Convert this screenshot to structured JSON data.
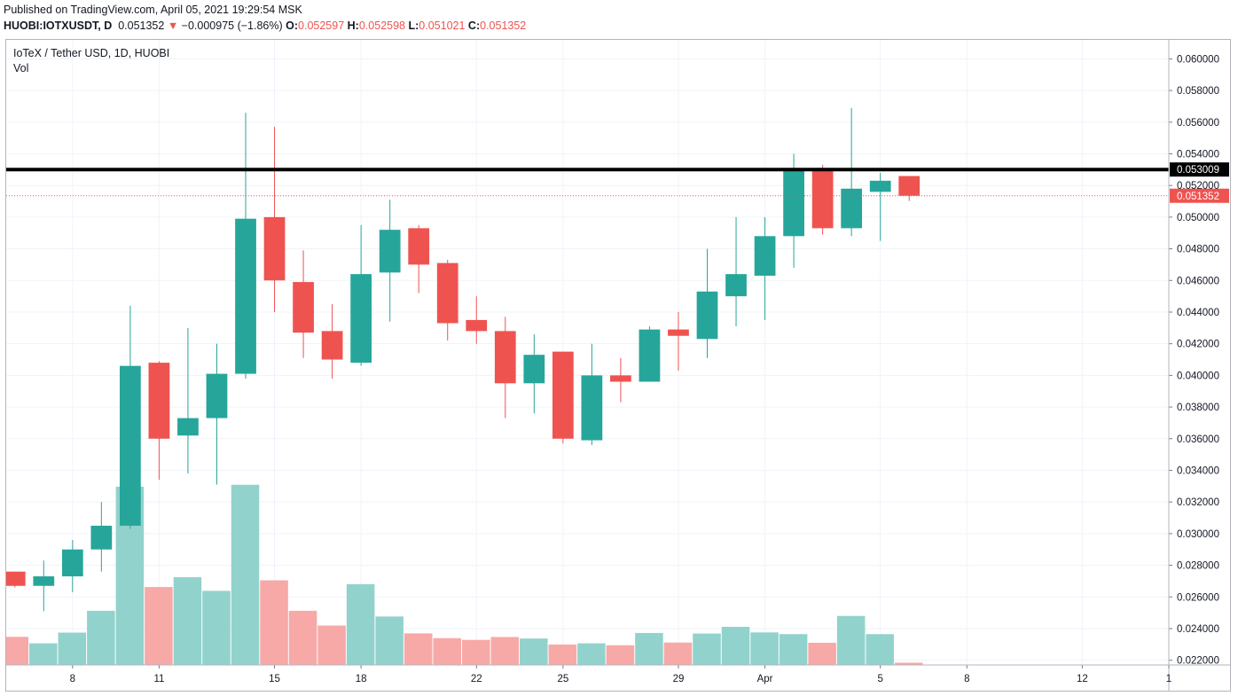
{
  "header": {
    "published": "Published on TradingView.com, April 05, 2021 19:29:54 MSK",
    "symbol": "HUOBI:IOTXUSDT, D",
    "last": "0.051352",
    "change": "−0.000975 (−1.86%)",
    "o_label": "O:",
    "o_value": "0.052597",
    "h_label": "H:",
    "h_value": "0.052598",
    "l_label": "L:",
    "l_value": "0.051021",
    "c_label": "C:",
    "c_value": "0.051352"
  },
  "legend": {
    "title": "IoTeX / Tether USD, 1D, HUOBI",
    "vol": "Vol"
  },
  "colors": {
    "up": "#26a69a",
    "down": "#ef5350",
    "vol_up": "#92d2cc",
    "vol_down": "#f7a9a7",
    "grid": "#f0f3fa",
    "hline": "#000000"
  },
  "chart_data": {
    "type": "candlestick",
    "y_ticks": [
      "0.060000",
      "0.058000",
      "0.056000",
      "0.054000",
      "0.052000",
      "0.050000",
      "0.048000",
      "0.046000",
      "0.044000",
      "0.042000",
      "0.040000",
      "0.038000",
      "0.036000",
      "0.034000",
      "0.032000",
      "0.030000",
      "0.028000",
      "0.026000",
      "0.024000",
      "0.022000"
    ],
    "ylim": [
      0.0217,
      0.0612
    ],
    "x_ticks": [
      {
        "label": "8",
        "day": 2
      },
      {
        "label": "11",
        "day": 5
      },
      {
        "label": "15",
        "day": 9
      },
      {
        "label": "18",
        "day": 12
      },
      {
        "label": "22",
        "day": 16
      },
      {
        "label": "25",
        "day": 19
      },
      {
        "label": "29",
        "day": 23
      },
      {
        "label": "Apr",
        "day": 26
      },
      {
        "label": "5",
        "day": 30
      },
      {
        "label": "8",
        "day": 33
      },
      {
        "label": "12",
        "day": 37
      },
      {
        "label": "1",
        "day": 40
      }
    ],
    "x_range": [
      -0.3,
      40.0
    ],
    "horizontal_line": {
      "value": 0.053009,
      "label": "0.053009"
    },
    "last_price": {
      "value": 0.051352,
      "label": "0.051352"
    },
    "candles": [
      {
        "date": "Mar 6",
        "o": 0.0276,
        "h": 0.0276,
        "l": 0.0266,
        "c": 0.0267
      },
      {
        "date": "Mar 7",
        "o": 0.0267,
        "h": 0.0283,
        "l": 0.0251,
        "c": 0.0273
      },
      {
        "date": "Mar 8",
        "o": 0.0273,
        "h": 0.0296,
        "l": 0.0263,
        "c": 0.029
      },
      {
        "date": "Mar 9",
        "o": 0.029,
        "h": 0.032,
        "l": 0.0276,
        "c": 0.0305
      },
      {
        "date": "Mar 10",
        "o": 0.0305,
        "h": 0.0444,
        "l": 0.0303,
        "c": 0.0406
      },
      {
        "date": "Mar 11",
        "o": 0.0408,
        "h": 0.0409,
        "l": 0.0334,
        "c": 0.036
      },
      {
        "date": "Mar 12",
        "o": 0.0362,
        "h": 0.043,
        "l": 0.0338,
        "c": 0.0373
      },
      {
        "date": "Mar 13",
        "o": 0.0373,
        "h": 0.042,
        "l": 0.0331,
        "c": 0.0401
      },
      {
        "date": "Mar 14",
        "o": 0.0401,
        "h": 0.0566,
        "l": 0.0398,
        "c": 0.0499
      },
      {
        "date": "Mar 15",
        "o": 0.05,
        "h": 0.0557,
        "l": 0.044,
        "c": 0.046
      },
      {
        "date": "Mar 16",
        "o": 0.0459,
        "h": 0.0479,
        "l": 0.0411,
        "c": 0.0427
      },
      {
        "date": "Mar 17",
        "o": 0.0428,
        "h": 0.0445,
        "l": 0.0398,
        "c": 0.041
      },
      {
        "date": "Mar 18",
        "o": 0.0408,
        "h": 0.0495,
        "l": 0.0406,
        "c": 0.0464
      },
      {
        "date": "Mar 19",
        "o": 0.0465,
        "h": 0.0511,
        "l": 0.0434,
        "c": 0.0492
      },
      {
        "date": "Mar 20",
        "o": 0.0493,
        "h": 0.0495,
        "l": 0.0452,
        "c": 0.047
      },
      {
        "date": "Mar 21",
        "o": 0.0471,
        "h": 0.0473,
        "l": 0.0422,
        "c": 0.0433
      },
      {
        "date": "Mar 22",
        "o": 0.0435,
        "h": 0.045,
        "l": 0.042,
        "c": 0.0428
      },
      {
        "date": "Mar 23",
        "o": 0.0428,
        "h": 0.0437,
        "l": 0.0373,
        "c": 0.0395
      },
      {
        "date": "Mar 24",
        "o": 0.0395,
        "h": 0.0426,
        "l": 0.0376,
        "c": 0.0413
      },
      {
        "date": "Mar 25",
        "o": 0.0415,
        "h": 0.0415,
        "l": 0.0357,
        "c": 0.036
      },
      {
        "date": "Mar 26",
        "o": 0.0359,
        "h": 0.042,
        "l": 0.0356,
        "c": 0.04
      },
      {
        "date": "Mar 27",
        "o": 0.04,
        "h": 0.0411,
        "l": 0.0383,
        "c": 0.0396
      },
      {
        "date": "Mar 28",
        "o": 0.0396,
        "h": 0.0431,
        "l": 0.0396,
        "c": 0.0429
      },
      {
        "date": "Mar 29",
        "o": 0.0429,
        "h": 0.044,
        "l": 0.0403,
        "c": 0.0425
      },
      {
        "date": "Mar 30",
        "o": 0.0423,
        "h": 0.048,
        "l": 0.0411,
        "c": 0.0453
      },
      {
        "date": "Mar 31",
        "o": 0.045,
        "h": 0.05,
        "l": 0.0431,
        "c": 0.0464
      },
      {
        "date": "Apr 1",
        "o": 0.0463,
        "h": 0.05,
        "l": 0.0435,
        "c": 0.0488
      },
      {
        "date": "Apr 2",
        "o": 0.0488,
        "h": 0.054,
        "l": 0.0468,
        "c": 0.053
      },
      {
        "date": "Apr 3",
        "o": 0.0531,
        "h": 0.0533,
        "l": 0.0489,
        "c": 0.0493
      },
      {
        "date": "Apr 4",
        "o": 0.0493,
        "h": 0.0569,
        "l": 0.0488,
        "c": 0.0518
      },
      {
        "date": "Apr 5",
        "o": 0.0516,
        "h": 0.0528,
        "l": 0.0485,
        "c": 0.0523
      },
      {
        "date": "Apr 6",
        "o": 0.052597,
        "h": 0.052598,
        "l": 0.051021,
        "c": 0.051352
      }
    ],
    "volume": {
      "ylim": [
        0,
        100
      ],
      "values": [
        14.7,
        11.3,
        16.9,
        28.3,
        93.1,
        40.7,
        45.8,
        38.7,
        94.1,
        44.2,
        28.3,
        20.6,
        42.2,
        25.3,
        16.5,
        14.0,
        13.1,
        14.6,
        13.8,
        10.7,
        11.3,
        10.3,
        16.7,
        11.7,
        16.4,
        19.9,
        17.0,
        16.1,
        11.6,
        25.6,
        16.1,
        1.2
      ]
    }
  }
}
